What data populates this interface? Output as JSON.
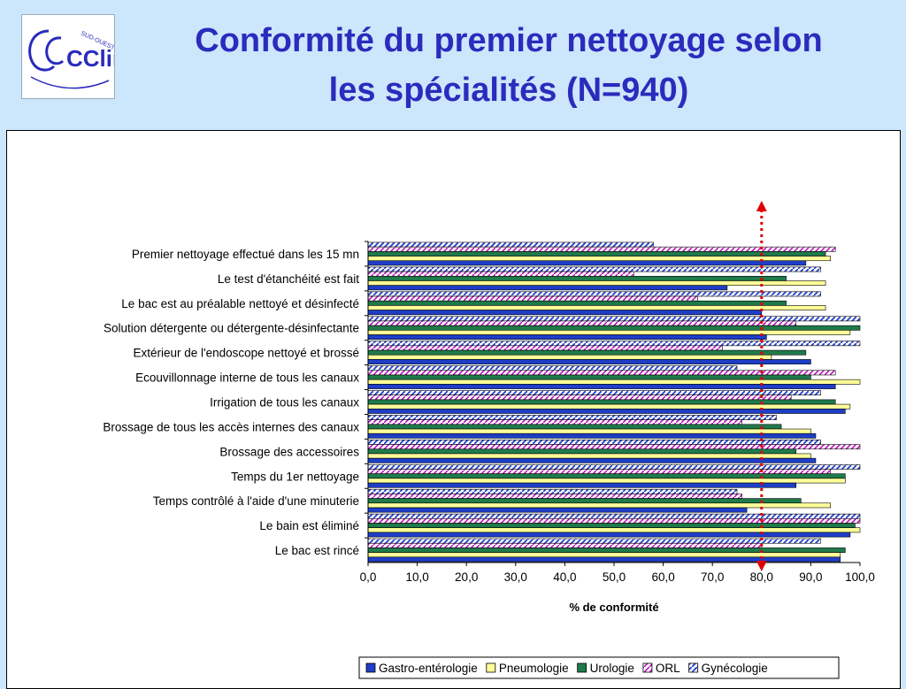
{
  "slide": {
    "title_line1": "Conformité du premier nettoyage selon",
    "title_line2": "les spécialités (N=940)"
  },
  "logo": {
    "text_main": "CClin",
    "text_sub": "SUD-OUEST"
  },
  "colors": {
    "background": "#cce6fb",
    "title": "#2b2bbd",
    "threshold_line": "#e00000"
  },
  "chart_data": {
    "type": "bar",
    "orientation": "horizontal",
    "categories": [
      "Premier nettoyage effectué dans les 15 mn",
      "Le test d'étanchéité est fait",
      "Le bac est au préalable nettoyé et désinfecté",
      "Solution détergente ou détergente-désinfectante",
      "Extérieur de l'endoscope nettoyé et brossé",
      "Ecouvillonnage interne de tous les canaux",
      "Irrigation de tous les canaux",
      "Brossage de tous les accès internes des canaux",
      "Brossage des accessoires",
      "Temps du 1er nettoyage",
      "Temps contrôlé à l'aide d'une minuterie",
      "Le bain est éliminé",
      "Le bac est rincé"
    ],
    "series": [
      {
        "name": "Gastro-entérologie",
        "color": "#1e3ec8",
        "pattern": "solid",
        "values": [
          89,
          73,
          80,
          81,
          90,
          95,
          97,
          91,
          91,
          87,
          77,
          98,
          96
        ]
      },
      {
        "name": "Pneumologie",
        "color": "#ffff99",
        "pattern": "solid",
        "values": [
          94,
          93,
          93,
          98,
          82,
          100,
          98,
          90,
          90,
          97,
          94,
          100,
          96
        ]
      },
      {
        "name": "Urologie",
        "color": "#1f7a4a",
        "pattern": "solid",
        "values": [
          93,
          85,
          85,
          100,
          89,
          90,
          95,
          84,
          87,
          97,
          88,
          99,
          97
        ]
      },
      {
        "name": "ORL",
        "color": "#ff99ff",
        "pattern": "hatched-magenta",
        "values": [
          95,
          54,
          67,
          87,
          72,
          95,
          86,
          76,
          100,
          94,
          76,
          100,
          80
        ]
      },
      {
        "name": "Gynécologie",
        "color": "#1e3ec8",
        "pattern": "hatched-blue",
        "values": [
          58,
          92,
          92,
          100,
          100,
          75,
          92,
          83,
          92,
          100,
          75,
          100,
          92
        ]
      }
    ],
    "x_ticks": [
      "0,0",
      "10,0",
      "20,0",
      "30,0",
      "40,0",
      "50,0",
      "60,0",
      "70,0",
      "80,0",
      "90,0",
      "100,0"
    ],
    "xlim": [
      0,
      100
    ],
    "xlabel": "% de conformité",
    "threshold": 80,
    "legend_position": "bottom"
  }
}
